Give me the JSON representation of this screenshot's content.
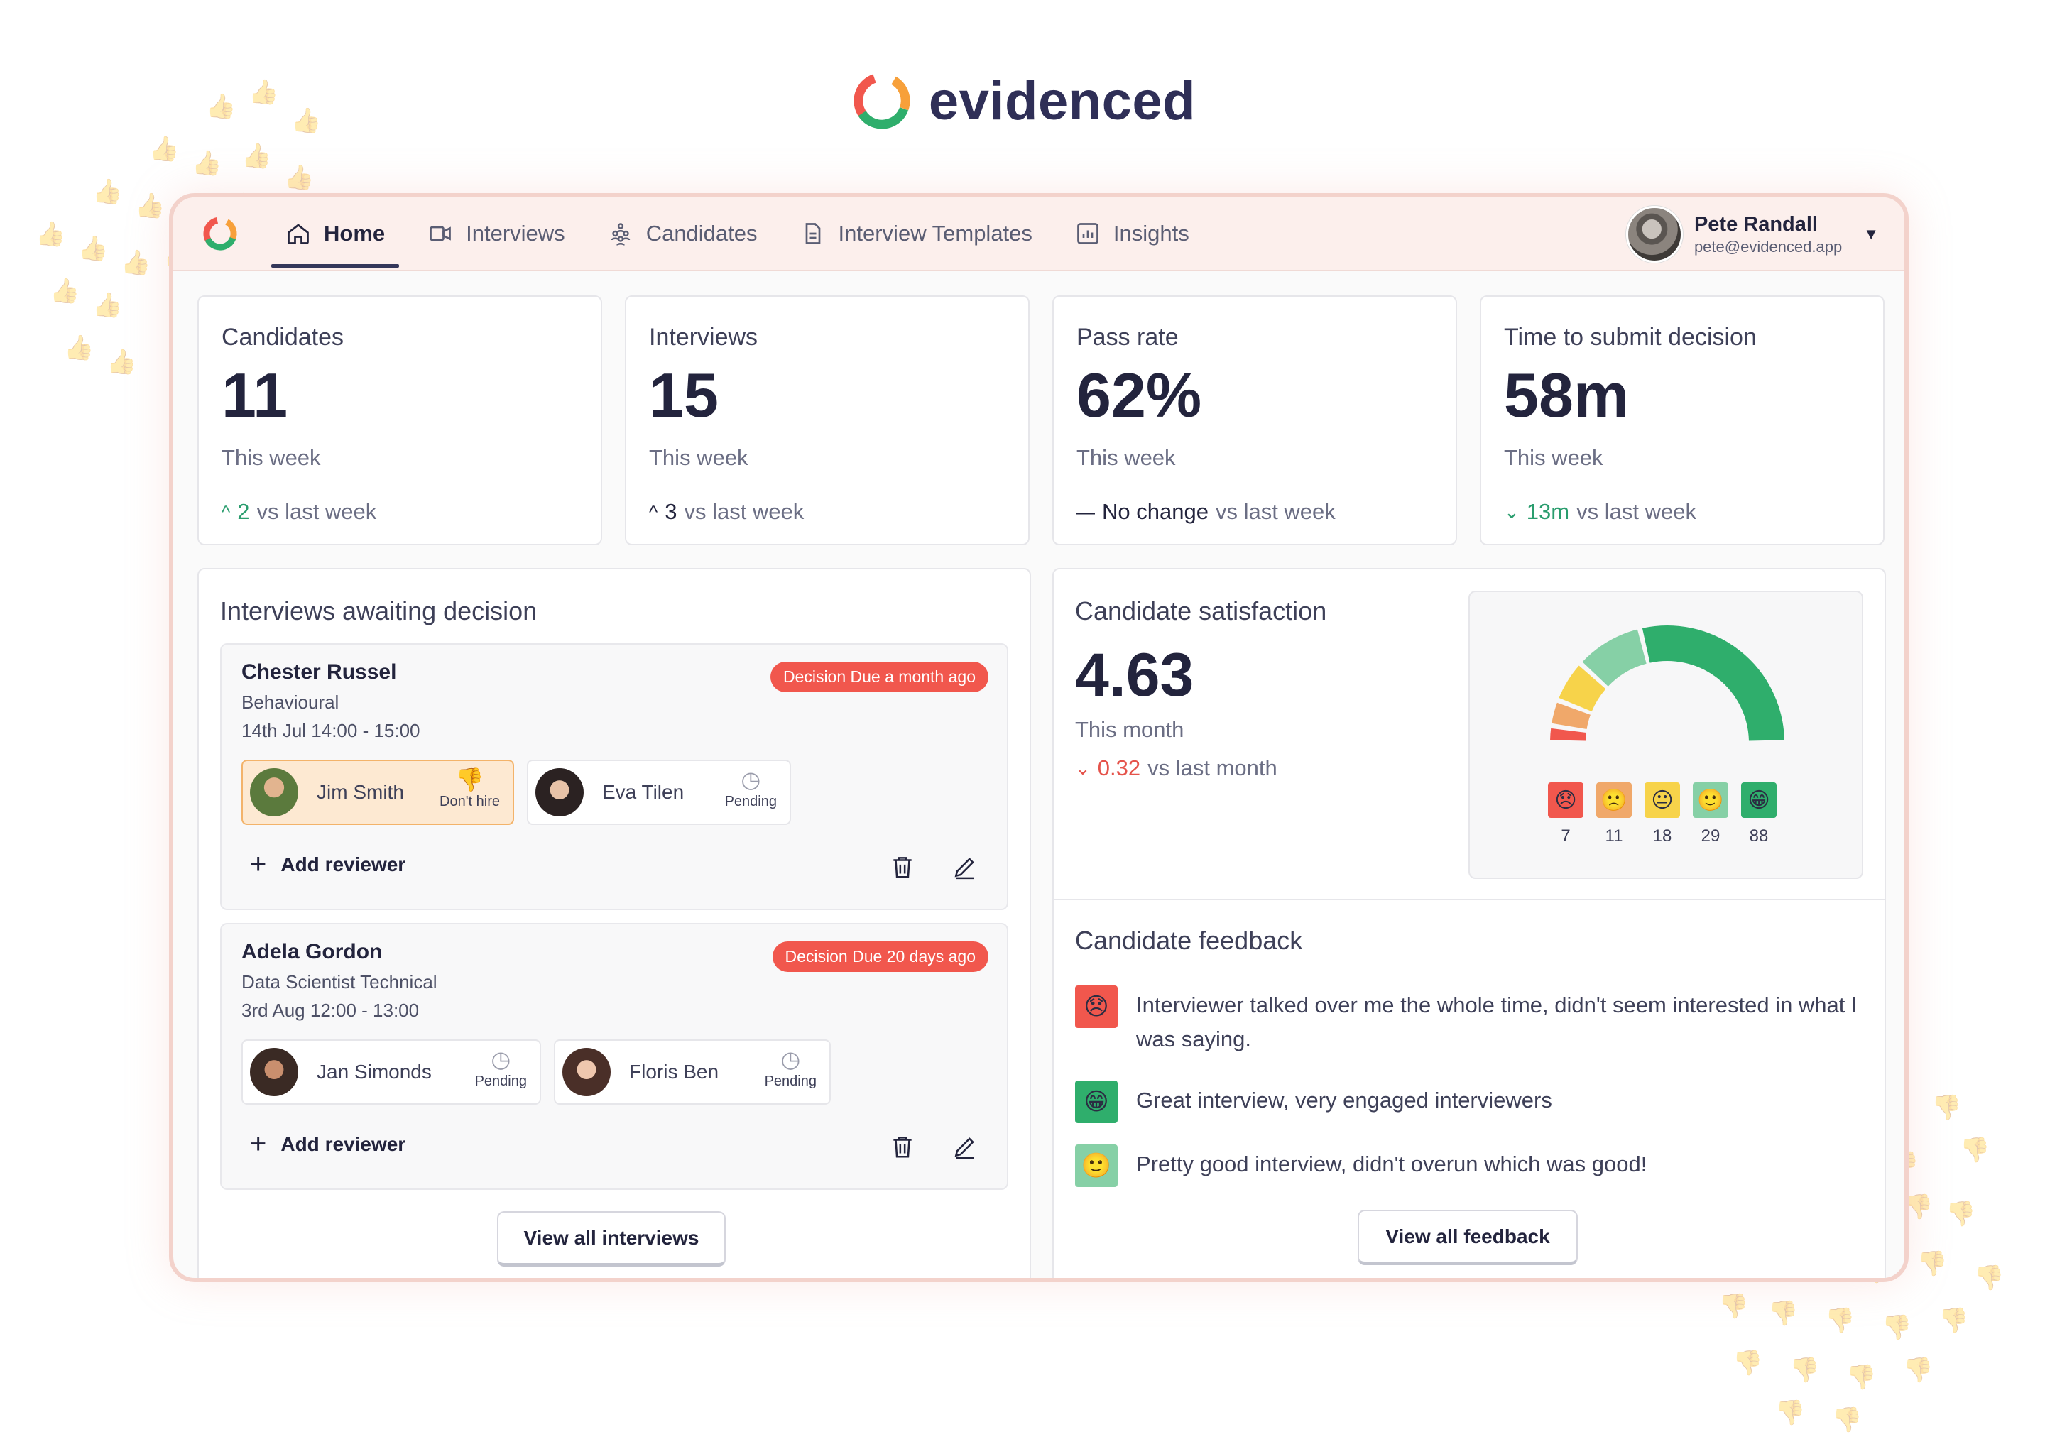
{
  "brand": {
    "name": "evidenced"
  },
  "nav": {
    "items": [
      {
        "label": "Home",
        "icon": "home-icon",
        "active": true
      },
      {
        "label": "Interviews",
        "icon": "video-icon",
        "active": false
      },
      {
        "label": "Candidates",
        "icon": "people-icon",
        "active": false
      },
      {
        "label": "Interview Templates",
        "icon": "document-icon",
        "active": false
      },
      {
        "label": "Insights",
        "icon": "chart-icon",
        "active": false
      }
    ],
    "user": {
      "name": "Pete Randall",
      "email": "pete@evidenced.app"
    }
  },
  "stats": [
    {
      "label": "Candidates",
      "value": "11",
      "period": "This week",
      "delta_value": "2",
      "delta_text": "vs last week",
      "trend": "up-green"
    },
    {
      "label": "Interviews",
      "value": "15",
      "period": "This week",
      "delta_value": "3",
      "delta_text": "vs last week",
      "trend": "up-dark"
    },
    {
      "label": "Pass rate",
      "value": "62%",
      "period": "This week",
      "delta_value": "No change",
      "delta_text": "vs last week",
      "trend": "flat"
    },
    {
      "label": "Time to submit decision",
      "value": "58m",
      "period": "This week",
      "delta_value": "13m",
      "delta_text": "vs last week",
      "trend": "down-green"
    }
  ],
  "awaiting": {
    "title": "Interviews awaiting decision",
    "interviews": [
      {
        "candidate": "Chester Russel",
        "type": "Behavioural",
        "time": "14th Jul 14:00 - 15:00",
        "due": "Decision Due a month ago",
        "reviewers": [
          {
            "name": "Jim Smith",
            "status": "Don't hire"
          },
          {
            "name": "Eva Tilen",
            "status": "Pending"
          }
        ]
      },
      {
        "candidate": "Adela Gordon",
        "type": "Data Scientist Technical",
        "time": "3rd Aug 12:00 - 13:00",
        "due": "Decision Due 20 days ago",
        "reviewers": [
          {
            "name": "Jan Simonds",
            "status": "Pending"
          },
          {
            "name": "Floris Ben",
            "status": "Pending"
          }
        ]
      }
    ],
    "add_reviewer": "Add reviewer",
    "view_all": "View all interviews"
  },
  "satisfaction": {
    "title": "Candidate satisfaction",
    "value": "4.63",
    "period": "This month",
    "delta_value": "0.32",
    "delta_text": "vs last month",
    "scores": [
      {
        "face": "😞",
        "count": "7",
        "color": "#f1574d"
      },
      {
        "face": "🙁",
        "count": "11",
        "color": "#f0a86a"
      },
      {
        "face": "😐",
        "count": "18",
        "color": "#f7d34a"
      },
      {
        "face": "🙂",
        "count": "29",
        "color": "#86d0a6"
      },
      {
        "face": "😁",
        "count": "88",
        "color": "#2fae6c"
      }
    ]
  },
  "feedback": {
    "title": "Candidate feedback",
    "items": [
      {
        "face": "😞",
        "color": "#f1574d",
        "text": "Interviewer talked over me the whole time, didn't seem interested in what I was saying."
      },
      {
        "face": "😁",
        "color": "#2fae6c",
        "text": "Great interview, very engaged interviewers"
      },
      {
        "face": "🙂",
        "color": "#86d0a6",
        "text": "Pretty good interview, didn't overun which was good!"
      }
    ],
    "view_all": "View all feedback"
  }
}
